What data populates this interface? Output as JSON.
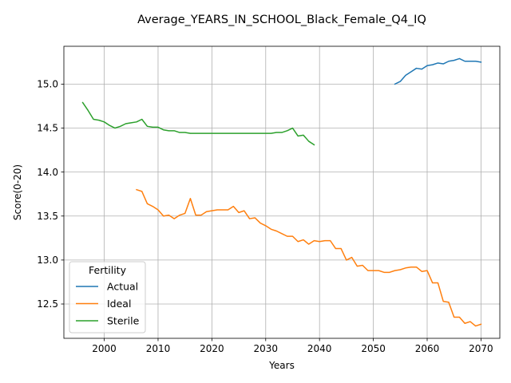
{
  "chart_data": {
    "type": "line",
    "title": "Average_YEARS_IN_SCHOOL_Black_Female_Q4_IQ",
    "xlabel": "Years",
    "ylabel": "Score(0-20)",
    "xlim": [
      1992.5,
      2073.5
    ],
    "ylim": [
      12.11,
      15.43
    ],
    "xticks": [
      2000,
      2010,
      2020,
      2030,
      2040,
      2050,
      2060,
      2070
    ],
    "yticks": [
      12.5,
      13.0,
      13.5,
      14.0,
      14.5,
      15.0
    ],
    "ytick_labels": [
      "12.5",
      "13.0",
      "13.5",
      "14.0",
      "14.5",
      "15.0"
    ],
    "grid": true,
    "legend": {
      "title": "Fertility",
      "placement": "lower-left"
    },
    "series": [
      {
        "name": "Actual",
        "color": "#1f77b4",
        "x": [
          2054,
          2055,
          2056,
          2057,
          2058,
          2059,
          2060,
          2061,
          2062,
          2063,
          2064,
          2065,
          2066,
          2067,
          2068,
          2069,
          2070
        ],
        "y": [
          15.0,
          15.03,
          15.1,
          15.14,
          15.18,
          15.17,
          15.21,
          15.22,
          15.24,
          15.23,
          15.26,
          15.27,
          15.29,
          15.26,
          15.26,
          15.26,
          15.25
        ]
      },
      {
        "name": "Ideal",
        "color": "#ff7f0e",
        "x": [
          2006,
          2007,
          2008,
          2009,
          2010,
          2011,
          2012,
          2013,
          2014,
          2015,
          2016,
          2017,
          2018,
          2019,
          2020,
          2021,
          2022,
          2023,
          2024,
          2025,
          2026,
          2027,
          2028,
          2029,
          2030,
          2031,
          2032,
          2033,
          2034,
          2035,
          2036,
          2037,
          2038,
          2039,
          2040,
          2041,
          2042,
          2043,
          2044,
          2045,
          2046,
          2047,
          2048,
          2049,
          2050,
          2051,
          2052,
          2053,
          2054,
          2055,
          2056,
          2057,
          2058,
          2059,
          2060,
          2061,
          2062,
          2063,
          2064,
          2065,
          2066,
          2067,
          2068,
          2069,
          2070
        ],
        "y": [
          13.8,
          13.78,
          13.64,
          13.61,
          13.57,
          13.5,
          13.51,
          13.47,
          13.51,
          13.53,
          13.7,
          13.51,
          13.51,
          13.55,
          13.56,
          13.57,
          13.57,
          13.57,
          13.61,
          13.54,
          13.56,
          13.47,
          13.48,
          13.42,
          13.39,
          13.35,
          13.33,
          13.3,
          13.27,
          13.27,
          13.21,
          13.23,
          13.18,
          13.22,
          13.21,
          13.22,
          13.22,
          13.13,
          13.13,
          13.0,
          13.03,
          12.93,
          12.94,
          12.88,
          12.88,
          12.88,
          12.86,
          12.86,
          12.88,
          12.89,
          12.91,
          12.92,
          12.92,
          12.87,
          12.88,
          12.74,
          12.74,
          12.53,
          12.52,
          12.35,
          12.35,
          12.28,
          12.3,
          12.25,
          12.27
        ]
      },
      {
        "name": "Sterile",
        "color": "#2ca02c",
        "x": [
          1996,
          1997,
          1998,
          1999,
          2000,
          2001,
          2002,
          2003,
          2004,
          2005,
          2006,
          2007,
          2008,
          2009,
          2010,
          2011,
          2012,
          2013,
          2014,
          2015,
          2016,
          2017,
          2018,
          2019,
          2020,
          2021,
          2022,
          2023,
          2024,
          2025,
          2026,
          2027,
          2028,
          2029,
          2030,
          2031,
          2032,
          2033,
          2034,
          2035,
          2036,
          2037,
          2038,
          2039
        ],
        "y": [
          14.79,
          14.7,
          14.6,
          14.59,
          14.57,
          14.53,
          14.5,
          14.52,
          14.55,
          14.56,
          14.57,
          14.6,
          14.52,
          14.51,
          14.51,
          14.48,
          14.47,
          14.47,
          14.45,
          14.45,
          14.44,
          14.44,
          14.44,
          14.44,
          14.44,
          14.44,
          14.44,
          14.44,
          14.44,
          14.44,
          14.44,
          14.44,
          14.44,
          14.44,
          14.44,
          14.44,
          14.45,
          14.45,
          14.47,
          14.5,
          14.41,
          14.42,
          14.35,
          14.31
        ]
      }
    ]
  }
}
